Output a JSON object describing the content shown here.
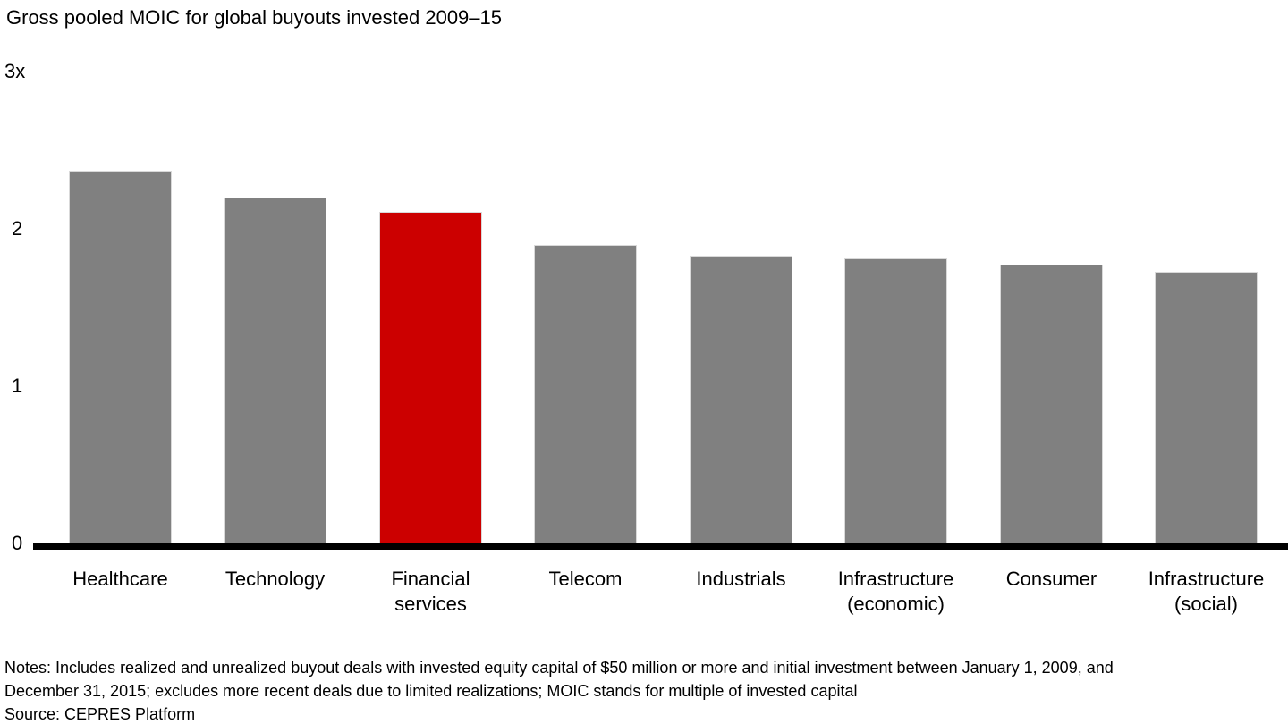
{
  "chart_data": {
    "type": "bar",
    "title": "Gross pooled MOIC for global buyouts invested 2009–15",
    "categories": [
      "Healthcare",
      "Technology",
      "Financial services",
      "Telecom",
      "Industrials",
      "Infrastructure (economic)",
      "Consumer",
      "Infrastructure (social)"
    ],
    "category_label_lines": [
      [
        "Healthcare"
      ],
      [
        "Technology"
      ],
      [
        "Financial",
        "services"
      ],
      [
        "Telecom"
      ],
      [
        "Industrials"
      ],
      [
        "Infrastructure",
        "(economic)"
      ],
      [
        "Consumer"
      ],
      [
        "Infrastructure",
        "(social)"
      ]
    ],
    "values": [
      2.37,
      2.2,
      2.11,
      1.9,
      1.83,
      1.81,
      1.77,
      1.73
    ],
    "highlight_index": 2,
    "bar_color": "#808080",
    "highlight_color": "#cc0000",
    "axis_color": "#000000",
    "ylabel": "",
    "xlabel": "",
    "ylim": [
      0,
      3
    ],
    "grid": false,
    "legend": null,
    "yticks": [
      {
        "value": 3,
        "label": "3x"
      },
      {
        "value": 2,
        "label": "2"
      },
      {
        "value": 1,
        "label": "1"
      },
      {
        "value": 0,
        "label": "0"
      }
    ]
  },
  "notes": [
    "Notes: Includes realized and unrealized buyout deals with invested equity capital of $50 million or more and initial investment between January 1, 2009, and",
    "December 31, 2015; excludes more recent deals due to limited realizations; MOIC stands for multiple of invested capital",
    "Source: CEPRES Platform"
  ]
}
